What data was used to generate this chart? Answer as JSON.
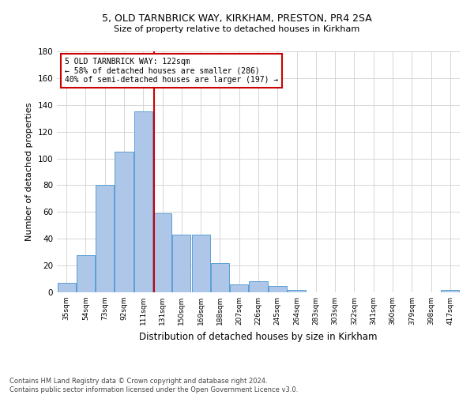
{
  "title1": "5, OLD TARNBRICK WAY, KIRKHAM, PRESTON, PR4 2SA",
  "title2": "Size of property relative to detached houses in Kirkham",
  "xlabel": "Distribution of detached houses by size in Kirkham",
  "ylabel": "Number of detached properties",
  "footnote": "Contains HM Land Registry data © Crown copyright and database right 2024.\nContains public sector information licensed under the Open Government Licence v3.0.",
  "bin_labels": [
    "35sqm",
    "54sqm",
    "73sqm",
    "92sqm",
    "111sqm",
    "131sqm",
    "150sqm",
    "169sqm",
    "188sqm",
    "207sqm",
    "226sqm",
    "245sqm",
    "264sqm",
    "283sqm",
    "303sqm",
    "322sqm",
    "341sqm",
    "360sqm",
    "379sqm",
    "398sqm",
    "417sqm"
  ],
  "bar_values": [
    7,
    28,
    80,
    105,
    135,
    59,
    43,
    43,
    22,
    6,
    8,
    5,
    2,
    0,
    0,
    0,
    0,
    0,
    0,
    0,
    2
  ],
  "bar_color": "#aec6e8",
  "bar_edge_color": "#5a9fd4",
  "property_label": "5 OLD TARNBRICK WAY: 122sqm",
  "annotation_line1": "← 58% of detached houses are smaller (286)",
  "annotation_line2": "40% of semi-detached houses are larger (197) →",
  "vline_color": "#cc0000",
  "annotation_box_color": "#cc0000",
  "ylim": [
    0,
    180
  ],
  "yticks": [
    0,
    20,
    40,
    60,
    80,
    100,
    120,
    140,
    160,
    180
  ],
  "background_color": "#ffffff",
  "grid_color": "#d0d0d0",
  "vline_x": 4.55
}
